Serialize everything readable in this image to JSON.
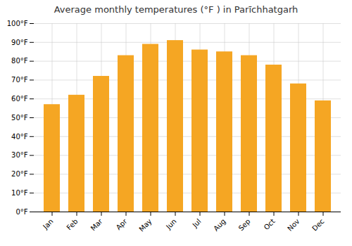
{
  "chart_data": {
    "type": "bar",
    "title": "Average monthly temperatures (°F ) in Parīchhatgarh",
    "categories": [
      "Jan",
      "Feb",
      "Mar",
      "Apr",
      "May",
      "Jun",
      "Jul",
      "Aug",
      "Sep",
      "Oct",
      "Nov",
      "Dec"
    ],
    "values": [
      57,
      62,
      72,
      83,
      89,
      91,
      86,
      85,
      83,
      78,
      68,
      59
    ],
    "color": "#F5A623",
    "ylim": [
      0,
      100
    ],
    "yticks": [
      {
        "value": 0,
        "label": "0°F"
      },
      {
        "value": 10,
        "label": "10°F"
      },
      {
        "value": 20,
        "label": "20°F"
      },
      {
        "value": 30,
        "label": "30°F"
      },
      {
        "value": 40,
        "label": "40°F"
      },
      {
        "value": 50,
        "label": "50°F"
      },
      {
        "value": 60,
        "label": "60°F"
      },
      {
        "value": 70,
        "label": "70°F"
      },
      {
        "value": 80,
        "label": "80°F"
      },
      {
        "value": 90,
        "label": "90°F"
      },
      {
        "value": 100,
        "label": "100°F"
      }
    ],
    "grid": true
  }
}
